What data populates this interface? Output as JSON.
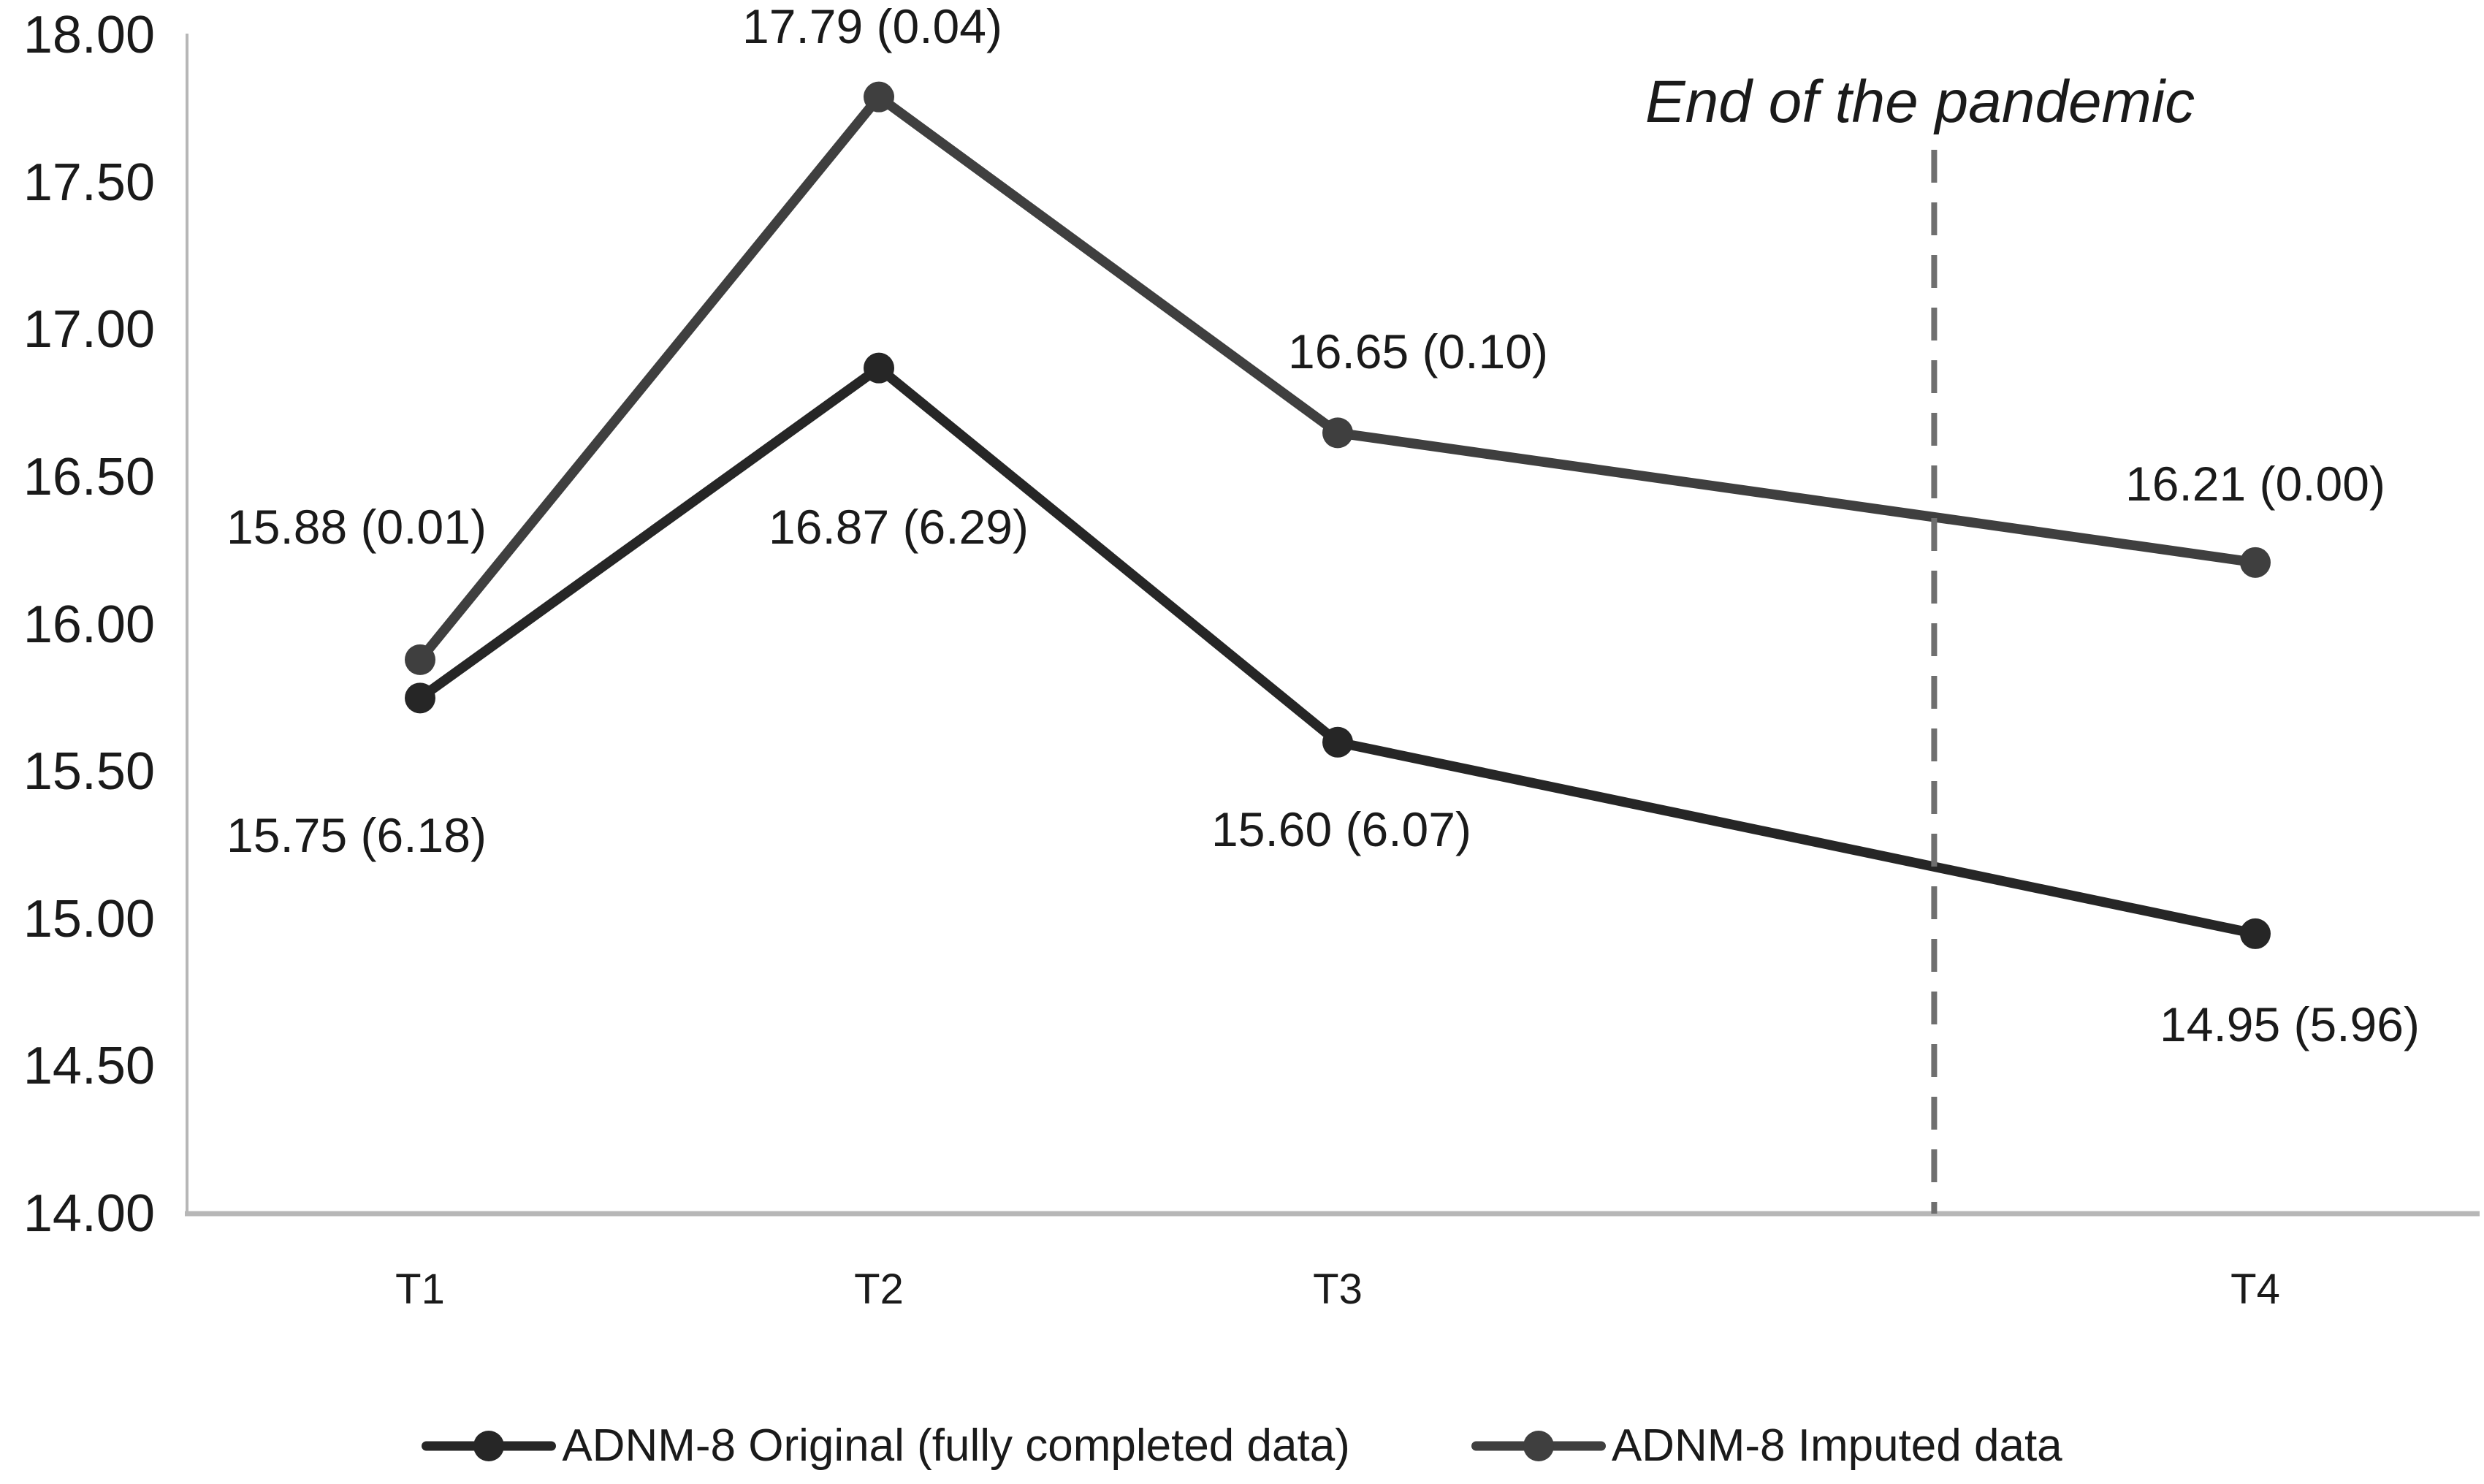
{
  "chart_data": {
    "type": "line",
    "categories": [
      "T1",
      "T2",
      "T3",
      "T4"
    ],
    "x_units": [
      0,
      1,
      2,
      4
    ],
    "ylim": [
      14.0,
      18.0
    ],
    "ytick_step": 0.5,
    "yticks": [
      "18.00",
      "17.50",
      "17.00",
      "16.50",
      "16.00",
      "15.50",
      "15.00",
      "14.50",
      "14.00"
    ],
    "grid": false,
    "legend_position": "bottom",
    "series": [
      {
        "name": "ADNM-8 Original (fully completed data)",
        "color": "#262626",
        "values": [
          15.75,
          16.87,
          15.6,
          14.95
        ],
        "point_labels": [
          "15.75 (6.18)",
          "16.87 (6.29)",
          "15.60 (6.07)",
          "14.95 (5.96)"
        ]
      },
      {
        "name": "ADNM-8 Imputed data",
        "color": "#3f3f3f",
        "values": [
          15.88,
          17.79,
          16.65,
          16.21
        ],
        "point_labels": [
          "15.88 (0.01)",
          "17.79 (0.04)",
          "16.65 (0.10)",
          "16.21 (0.00)"
        ]
      }
    ],
    "annotation": {
      "text": "End of the pandemic",
      "x_unit": 3.3
    },
    "axis_color": "#b7b7b7",
    "dashed_line_color": "#6f6f6f",
    "text_color": "#1a1a1a",
    "background": "#ffffff"
  }
}
